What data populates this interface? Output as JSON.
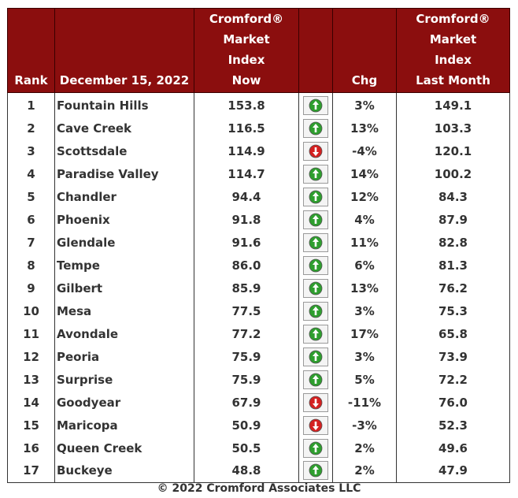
{
  "table": {
    "headers": {
      "rank": "Rank",
      "date": "December 15, 2022",
      "now_line1": "Cromford®",
      "now_line2": "Market",
      "now_line3": "Index",
      "now_line4": "Now",
      "chg": "Chg",
      "last_line1": "Cromford®",
      "last_line2": "Market",
      "last_line3": "Index",
      "last_line4": "Last Month"
    },
    "colors": {
      "header_bg": "#8b0e0e",
      "up_arrow": "#2e9e2e",
      "down_arrow": "#d42020"
    },
    "rows": [
      {
        "rank": "1",
        "city": "Fountain Hills",
        "now": "153.8",
        "dir": "up",
        "chg": "3%",
        "last": "149.1"
      },
      {
        "rank": "2",
        "city": "Cave Creek",
        "now": "116.5",
        "dir": "up",
        "chg": "13%",
        "last": "103.3"
      },
      {
        "rank": "3",
        "city": "Scottsdale",
        "now": "114.9",
        "dir": "down",
        "chg": "-4%",
        "last": "120.1"
      },
      {
        "rank": "4",
        "city": "Paradise Valley",
        "now": "114.7",
        "dir": "up",
        "chg": "14%",
        "last": "100.2"
      },
      {
        "rank": "5",
        "city": "Chandler",
        "now": "94.4",
        "dir": "up",
        "chg": "12%",
        "last": "84.3"
      },
      {
        "rank": "6",
        "city": "Phoenix",
        "now": "91.8",
        "dir": "up",
        "chg": "4%",
        "last": "87.9"
      },
      {
        "rank": "7",
        "city": "Glendale",
        "now": "91.6",
        "dir": "up",
        "chg": "11%",
        "last": "82.8"
      },
      {
        "rank": "8",
        "city": "Tempe",
        "now": "86.0",
        "dir": "up",
        "chg": "6%",
        "last": "81.3"
      },
      {
        "rank": "9",
        "city": "Gilbert",
        "now": "85.9",
        "dir": "up",
        "chg": "13%",
        "last": "76.2"
      },
      {
        "rank": "10",
        "city": "Mesa",
        "now": "77.5",
        "dir": "up",
        "chg": "3%",
        "last": "75.3"
      },
      {
        "rank": "11",
        "city": "Avondale",
        "now": "77.2",
        "dir": "up",
        "chg": "17%",
        "last": "65.8"
      },
      {
        "rank": "12",
        "city": "Peoria",
        "now": "75.9",
        "dir": "up",
        "chg": "3%",
        "last": "73.9"
      },
      {
        "rank": "13",
        "city": "Surprise",
        "now": "75.9",
        "dir": "up",
        "chg": "5%",
        "last": "72.2"
      },
      {
        "rank": "14",
        "city": "Goodyear",
        "now": "67.9",
        "dir": "down",
        "chg": "-11%",
        "last": "76.0"
      },
      {
        "rank": "15",
        "city": "Maricopa",
        "now": "50.9",
        "dir": "down",
        "chg": "-3%",
        "last": "52.3"
      },
      {
        "rank": "16",
        "city": "Queen Creek",
        "now": "50.5",
        "dir": "up",
        "chg": "2%",
        "last": "49.6"
      },
      {
        "rank": "17",
        "city": "Buckeye",
        "now": "48.8",
        "dir": "up",
        "chg": "2%",
        "last": "47.9"
      }
    ]
  },
  "caption": "© 2022 Cromford Associates LLC",
  "chart_data": {
    "type": "table",
    "columns": [
      "Rank",
      "December 15, 2022",
      "Cromford® Market Index Now",
      "",
      "Chg",
      "Cromford® Market Index Last Month"
    ],
    "rows": [
      [
        "1",
        "Fountain Hills",
        153.8,
        "up",
        "3%",
        149.1
      ],
      [
        "2",
        "Cave Creek",
        116.5,
        "up",
        "13%",
        103.3
      ],
      [
        "3",
        "Scottsdale",
        114.9,
        "down",
        "-4%",
        120.1
      ],
      [
        "4",
        "Paradise Valley",
        114.7,
        "up",
        "14%",
        100.2
      ],
      [
        "5",
        "Chandler",
        94.4,
        "up",
        "12%",
        84.3
      ],
      [
        "6",
        "Phoenix",
        91.8,
        "up",
        "4%",
        87.9
      ],
      [
        "7",
        "Glendale",
        91.6,
        "up",
        "11%",
        82.8
      ],
      [
        "8",
        "Tempe",
        86.0,
        "up",
        "6%",
        81.3
      ],
      [
        "9",
        "Gilbert",
        85.9,
        "up",
        "13%",
        76.2
      ],
      [
        "10",
        "Mesa",
        77.5,
        "up",
        "3%",
        75.3
      ],
      [
        "11",
        "Avondale",
        77.2,
        "up",
        "17%",
        65.8
      ],
      [
        "12",
        "Peoria",
        75.9,
        "up",
        "3%",
        73.9
      ],
      [
        "13",
        "Surprise",
        75.9,
        "up",
        "5%",
        72.2
      ],
      [
        "14",
        "Goodyear",
        67.9,
        "down",
        "-11%",
        76.0
      ],
      [
        "15",
        "Maricopa",
        50.9,
        "down",
        "-3%",
        52.3
      ],
      [
        "16",
        "Queen Creek",
        50.5,
        "up",
        "2%",
        49.6
      ],
      [
        "17",
        "Buckeye",
        48.8,
        "up",
        "2%",
        47.9
      ]
    ]
  }
}
